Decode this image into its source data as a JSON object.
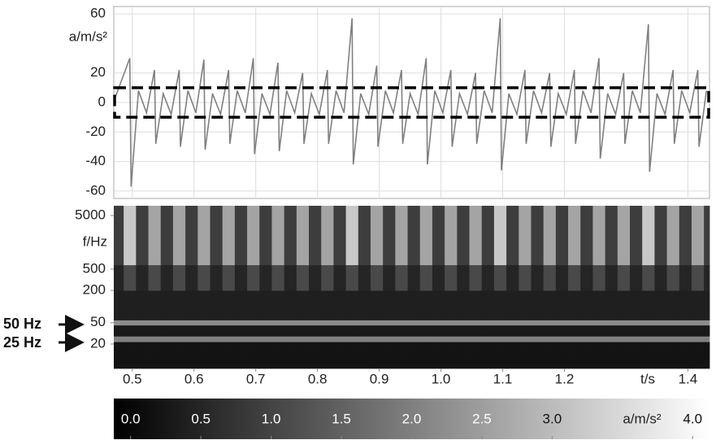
{
  "chart_data": [
    {
      "type": "line",
      "ylabel": "a/m/s²",
      "color": "#808080",
      "xlim": [
        0.47,
        1.435
      ],
      "ylim": [
        -65,
        65
      ],
      "yticks": [
        60,
        20,
        0,
        -20,
        -40,
        -60
      ],
      "grid": true,
      "highlight": {
        "ylim": [
          -10,
          10
        ],
        "color": "#000000"
      },
      "x": [
        0.472,
        0.496,
        0.498,
        0.51,
        0.523,
        0.536,
        0.538,
        0.55,
        0.563,
        0.576,
        0.578,
        0.59,
        0.603,
        0.616,
        0.618,
        0.63,
        0.643,
        0.656,
        0.658,
        0.67,
        0.683,
        0.696,
        0.698,
        0.71,
        0.723,
        0.736,
        0.738,
        0.75,
        0.763,
        0.776,
        0.778,
        0.79,
        0.803,
        0.816,
        0.818,
        0.83,
        0.843,
        0.856,
        0.858,
        0.87,
        0.883,
        0.896,
        0.898,
        0.91,
        0.923,
        0.936,
        0.938,
        0.95,
        0.963,
        0.976,
        0.978,
        0.99,
        1.003,
        1.016,
        1.018,
        1.03,
        1.043,
        1.056,
        1.058,
        1.07,
        1.083,
        1.096,
        1.098,
        1.11,
        1.123,
        1.136,
        1.138,
        1.15,
        1.163,
        1.176,
        1.178,
        1.19,
        1.203,
        1.216,
        1.218,
        1.23,
        1.243,
        1.256,
        1.258,
        1.27,
        1.283,
        1.296,
        1.298,
        1.31,
        1.323,
        1.336,
        1.338,
        1.35,
        1.363,
        1.376,
        1.378,
        1.39,
        1.403,
        1.416,
        1.418,
        1.43
      ],
      "values": [
        3,
        30,
        -57,
        8,
        -7,
        22,
        -28,
        6,
        -8,
        22,
        -30,
        8,
        -7,
        29,
        -32,
        6,
        -8,
        22,
        -28,
        8,
        -7,
        30,
        -35,
        6,
        -8,
        27,
        -33,
        8,
        -7,
        20,
        -28,
        6,
        -8,
        22,
        -28,
        8,
        -7,
        57,
        -42,
        6,
        -8,
        25,
        -30,
        8,
        -7,
        22,
        -28,
        6,
        -8,
        30,
        -42,
        8,
        -7,
        22,
        -30,
        6,
        -8,
        20,
        -28,
        8,
        -7,
        57,
        -46,
        6,
        -8,
        22,
        -28,
        8,
        -7,
        20,
        -30,
        6,
        -8,
        22,
        -28,
        8,
        -7,
        30,
        -38,
        6,
        -8,
        20,
        -28,
        8,
        -7,
        53,
        -47,
        6,
        -8,
        22,
        -28,
        8,
        -7,
        22,
        -30,
        8
      ]
    },
    {
      "type": "heatmap",
      "ylabel": "f/Hz",
      "xlabel": "t/s",
      "ylog": true,
      "xlim": [
        0.47,
        1.435
      ],
      "ylim": [
        7,
        7600
      ],
      "xticks": [
        0.5,
        0.6,
        0.7,
        0.8,
        0.9,
        {
          "value": 1,
          "label": "1.0"
        },
        1.1,
        1.2,
        1.4
      ],
      "yticks": [
        5000,
        500,
        200,
        50,
        20
      ],
      "x_edges": [
        0.47,
        0.486,
        0.506,
        0.526,
        0.546,
        0.566,
        0.586,
        0.606,
        0.626,
        0.646,
        0.666,
        0.686,
        0.706,
        0.726,
        0.746,
        0.766,
        0.786,
        0.806,
        0.826,
        0.846,
        0.866,
        0.886,
        0.906,
        0.926,
        0.946,
        0.966,
        0.986,
        1.006,
        1.026,
        1.046,
        1.066,
        1.086,
        1.106,
        1.126,
        1.146,
        1.166,
        1.186,
        1.206,
        1.226,
        1.246,
        1.266,
        1.286,
        1.306,
        1.326,
        1.346,
        1.366,
        1.386,
        1.406,
        1.426,
        1.435
      ],
      "y_edges": [
        7,
        22,
        28,
        45,
        56,
        200,
        600,
        7600
      ],
      "z": [
        [
          0.2,
          0.2,
          0.2,
          0.2,
          0.2,
          0.2,
          0.2,
          0.2,
          0.2,
          0.2,
          0.2,
          0.2,
          0.2,
          0.2,
          0.2,
          0.2,
          0.2,
          0.2,
          0.2,
          0.2,
          0.2,
          0.2,
          0.2,
          0.2,
          0.2,
          0.2,
          0.2,
          0.2,
          0.2,
          0.2,
          0.2,
          0.2,
          0.2,
          0.2,
          0.2,
          0.2,
          0.2,
          0.2,
          0.2,
          0.2,
          0.2,
          0.2,
          0.2,
          0.2,
          0.2,
          0.2,
          0.2,
          0.2,
          0.2
        ],
        [
          2.0,
          2.0,
          2.0,
          2.0,
          2.0,
          2.0,
          2.0,
          2.0,
          2.0,
          2.0,
          2.0,
          2.0,
          2.0,
          2.0,
          2.0,
          2.0,
          2.0,
          2.0,
          2.0,
          2.0,
          2.0,
          2.0,
          2.0,
          2.0,
          2.0,
          2.0,
          2.0,
          2.0,
          2.0,
          2.0,
          2.0,
          2.0,
          2.0,
          2.0,
          2.0,
          2.0,
          2.0,
          2.0,
          2.0,
          2.0,
          2.0,
          2.0,
          2.0,
          2.0,
          2.0,
          2.0,
          2.0,
          2.0,
          2.0
        ],
        [
          0.3,
          0.3,
          0.3,
          0.3,
          0.3,
          0.3,
          0.3,
          0.3,
          0.3,
          0.3,
          0.3,
          0.3,
          0.3,
          0.3,
          0.3,
          0.3,
          0.3,
          0.3,
          0.3,
          0.3,
          0.3,
          0.3,
          0.3,
          0.3,
          0.3,
          0.3,
          0.3,
          0.3,
          0.3,
          0.3,
          0.3,
          0.3,
          0.3,
          0.3,
          0.3,
          0.3,
          0.3,
          0.3,
          0.3,
          0.3,
          0.3,
          0.3,
          0.3,
          0.3,
          0.3,
          0.3,
          0.3,
          0.3,
          0.3
        ],
        [
          2.2,
          2.2,
          2.2,
          2.2,
          2.2,
          2.2,
          2.2,
          2.2,
          2.2,
          2.2,
          2.2,
          2.2,
          2.2,
          2.2,
          2.2,
          2.2,
          2.2,
          2.2,
          2.2,
          2.2,
          2.2,
          2.2,
          2.2,
          2.2,
          2.2,
          2.2,
          2.2,
          2.2,
          2.2,
          2.2,
          2.2,
          2.2,
          2.2,
          2.2,
          2.2,
          2.2,
          2.2,
          2.2,
          2.2,
          2.2,
          2.2,
          2.2,
          2.2,
          2.2,
          2.2,
          2.2,
          2.2,
          2.2,
          2.2
        ],
        [
          0.4,
          0.4,
          0.4,
          0.4,
          0.4,
          0.4,
          0.4,
          0.4,
          0.4,
          0.4,
          0.4,
          0.4,
          0.4,
          0.4,
          0.4,
          0.4,
          0.4,
          0.4,
          0.4,
          0.4,
          0.4,
          0.4,
          0.4,
          0.4,
          0.4,
          0.4,
          0.4,
          0.4,
          0.4,
          0.4,
          0.4,
          0.4,
          0.4,
          0.4,
          0.4,
          0.4,
          0.4,
          0.4,
          0.4,
          0.4,
          0.4,
          0.4,
          0.4,
          0.4,
          0.4,
          0.4,
          0.4,
          0.4,
          0.4
        ],
        [
          0.5,
          1.1,
          0.5,
          1.1,
          0.5,
          1.1,
          0.5,
          1.1,
          0.5,
          1.1,
          0.5,
          1.1,
          0.5,
          1.1,
          0.5,
          1.1,
          0.5,
          1.1,
          0.5,
          1.1,
          0.5,
          1.1,
          0.5,
          1.1,
          0.5,
          1.1,
          0.5,
          1.1,
          0.5,
          1.1,
          0.5,
          1.1,
          0.5,
          1.1,
          0.5,
          1.1,
          0.5,
          1.1,
          0.5,
          1.1,
          0.5,
          1.1,
          0.5,
          1.1,
          0.5,
          1.1,
          0.5,
          1.1,
          0.5
        ],
        [
          0.9,
          3.2,
          0.9,
          2.6,
          0.9,
          2.6,
          0.9,
          2.6,
          0.9,
          2.6,
          0.9,
          2.6,
          0.9,
          2.6,
          0.9,
          2.6,
          0.9,
          2.6,
          0.9,
          3.2,
          0.9,
          2.6,
          0.9,
          2.6,
          0.9,
          2.6,
          0.9,
          2.6,
          0.9,
          2.6,
          0.9,
          3.2,
          0.9,
          2.6,
          0.9,
          2.6,
          0.9,
          2.6,
          0.9,
          2.6,
          0.9,
          2.6,
          0.9,
          3.2,
          0.9,
          2.6,
          0.9,
          2.6,
          0.9
        ]
      ],
      "annotations": [
        {
          "text": "50 Hz"
        },
        {
          "text": "25 Hz"
        }
      ],
      "colorbar": {
        "label": "a/m/s²",
        "clim": [
          -0.12,
          4.12
        ],
        "colors": [
          "#000000",
          "#ffffff"
        ],
        "ticks": [
          {
            "value": 0,
            "label": "0.0"
          },
          0.5,
          {
            "value": 1,
            "label": "1.0"
          },
          1.5,
          {
            "value": 2,
            "label": "2.0"
          },
          2.5,
          {
            "value": 3,
            "label": "3.0"
          },
          {
            "value": 4,
            "label": "4.0"
          }
        ]
      }
    }
  ]
}
